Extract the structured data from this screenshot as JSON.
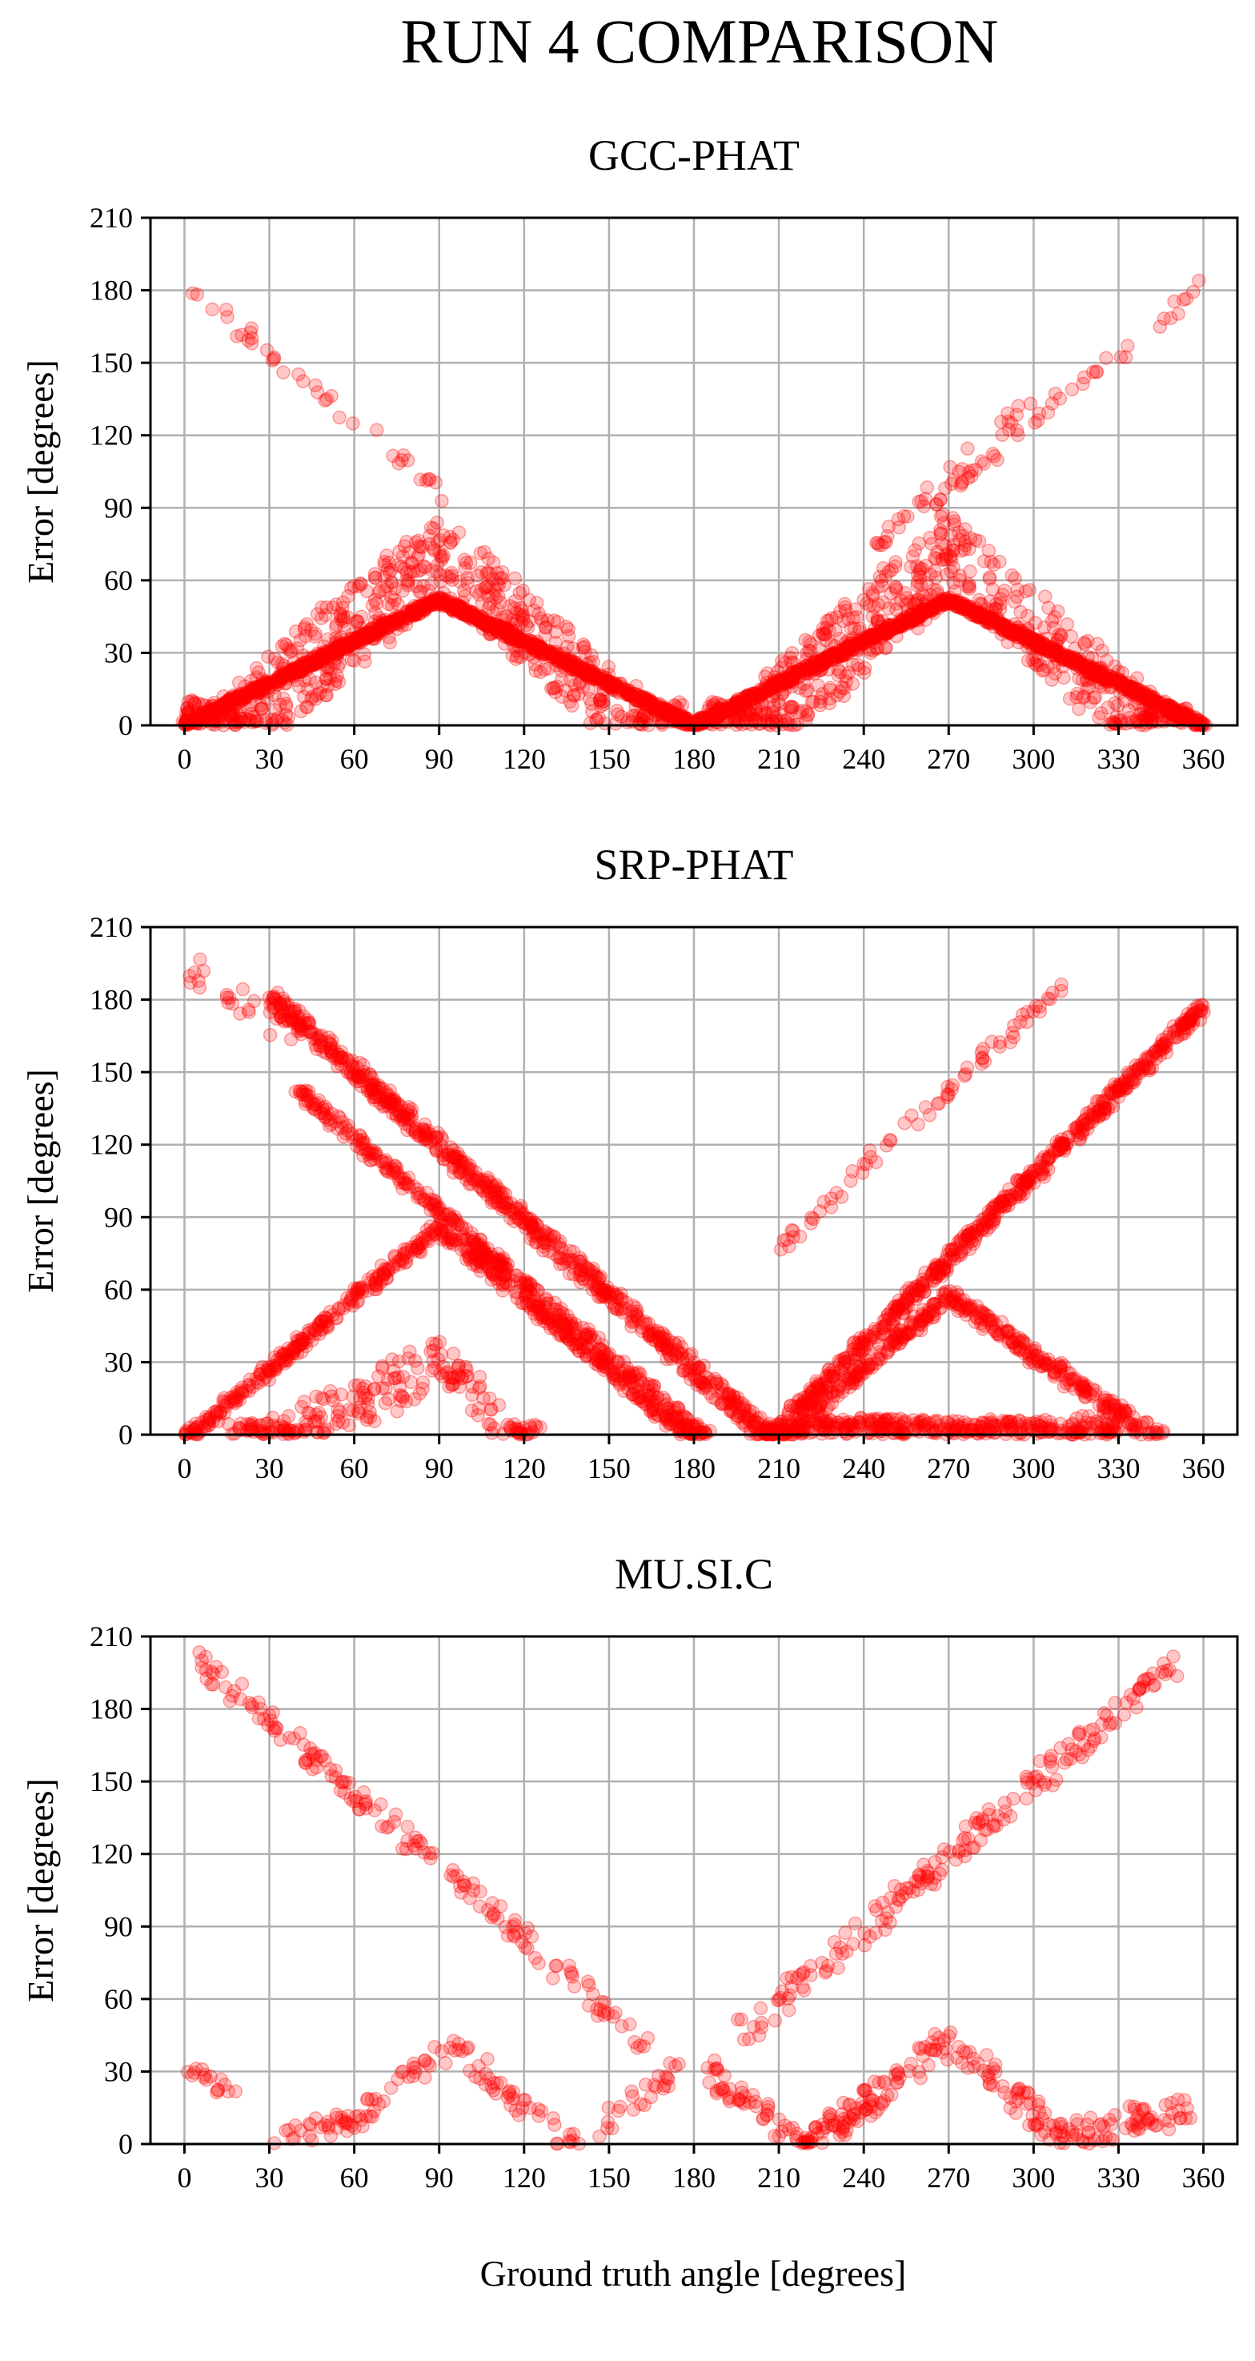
{
  "figure": {
    "suptitle": "RUN 4 COMPARISON",
    "xlabel": "Ground truth angle [degrees]"
  },
  "style": {
    "point_color": "#ff0000",
    "grid_color": "#b0b0b0",
    "point_alpha": 0.22
  },
  "chart_data": [
    {
      "type": "scatter",
      "title": "GCC-PHAT",
      "ylabel": "Error [degrees]",
      "xlim": [
        -12,
        372
      ],
      "ylim": [
        0,
        210
      ],
      "xticks": [
        0,
        30,
        60,
        90,
        120,
        150,
        180,
        210,
        240,
        270,
        300,
        330,
        360
      ],
      "yticks": [
        0,
        30,
        60,
        90,
        120,
        150,
        180,
        210
      ],
      "grid": true,
      "trends": [
        {
          "from": [
            0,
            0
          ],
          "to": [
            90,
            52
          ],
          "band": 0,
          "density": 6
        },
        {
          "from": [
            90,
            52
          ],
          "to": [
            180,
            0
          ],
          "band": 0,
          "density": 6
        },
        {
          "from": [
            180,
            0
          ],
          "to": [
            270,
            52
          ],
          "band": 0,
          "density": 6
        },
        {
          "from": [
            270,
            52
          ],
          "to": [
            360,
            0
          ],
          "band": 0,
          "density": 6
        },
        {
          "from": [
            0,
            0
          ],
          "to": [
            90,
            88
          ],
          "band": 36,
          "density": 4
        },
        {
          "from": [
            90,
            88
          ],
          "to": [
            175,
            0
          ],
          "band": 32,
          "density": 3
        },
        {
          "from": [
            185,
            0
          ],
          "to": [
            270,
            88
          ],
          "band": 36,
          "density": 4
        },
        {
          "from": [
            270,
            88
          ],
          "to": [
            355,
            0
          ],
          "band": 32,
          "density": 3
        },
        {
          "from": [
            0,
            185
          ],
          "to": [
            95,
            95
          ],
          "band": 6,
          "density": 0.4
        },
        {
          "from": [
            265,
            95
          ],
          "to": [
            360,
            185
          ],
          "band": 6,
          "density": 0.5
        },
        {
          "from": [
            240,
            75
          ],
          "to": [
            300,
            140
          ],
          "band": 8,
          "density": 0.5
        }
      ]
    },
    {
      "type": "scatter",
      "title": "SRP-PHAT",
      "ylabel": "Error [degrees]",
      "xlim": [
        -12,
        372
      ],
      "ylim": [
        0,
        210
      ],
      "xticks": [
        0,
        30,
        60,
        90,
        120,
        150,
        180,
        210,
        240,
        270,
        300,
        330,
        360
      ],
      "yticks": [
        0,
        30,
        60,
        90,
        120,
        150,
        180,
        210
      ],
      "grid": true,
      "trends": [
        {
          "from": [
            0,
            0
          ],
          "to": [
            90,
            88
          ],
          "band": 5,
          "density": 3
        },
        {
          "from": [
            90,
            88
          ],
          "to": [
            180,
            0
          ],
          "band": 5,
          "density": 3
        },
        {
          "from": [
            30,
            185
          ],
          "to": [
            210,
            0
          ],
          "band": 8,
          "density": 4
        },
        {
          "from": [
            40,
            145
          ],
          "to": [
            185,
            0
          ],
          "band": 5,
          "density": 2.5
        },
        {
          "from": [
            205,
            0
          ],
          "to": [
            360,
            180
          ],
          "band": 6,
          "density": 4
        },
        {
          "from": [
            210,
            80
          ],
          "to": [
            310,
            190
          ],
          "band": 6,
          "density": 0.7
        },
        {
          "from": [
            210,
            0
          ],
          "to": [
            270,
            60
          ],
          "band": 5,
          "density": 3
        },
        {
          "from": [
            270,
            60
          ],
          "to": [
            345,
            0
          ],
          "band": 6,
          "density": 3
        },
        {
          "from": [
            15,
            0
          ],
          "to": [
            90,
            40
          ],
          "band": 22,
          "density": 2
        },
        {
          "from": [
            90,
            40
          ],
          "to": [
            125,
            0
          ],
          "band": 18,
          "density": 2
        },
        {
          "from": [
            215,
            0
          ],
          "to": [
            330,
            10
          ],
          "band": 25,
          "density": 3
        },
        {
          "from": [
            0,
            200
          ],
          "to": [
            40,
            175
          ],
          "band": 15,
          "density": 0.6
        }
      ]
    },
    {
      "type": "scatter",
      "title": "MU.SI.C",
      "ylabel": "Error [degrees]",
      "xlim": [
        -12,
        372
      ],
      "ylim": [
        0,
        210
      ],
      "xticks": [
        0,
        30,
        60,
        90,
        120,
        150,
        180,
        210,
        240,
        270,
        300,
        330,
        360
      ],
      "yticks": [
        0,
        30,
        60,
        90,
        120,
        150,
        180,
        210
      ],
      "grid": true,
      "trends": [
        {
          "from": [
            5,
            205
          ],
          "to": [
            165,
            45
          ],
          "band": 10,
          "density": 1
        },
        {
          "from": [
            195,
            50
          ],
          "to": [
            350,
            205
          ],
          "band": 12,
          "density": 1.2
        },
        {
          "from": [
            0,
            35
          ],
          "to": [
            20,
            22
          ],
          "band": 6,
          "density": 0.8
        },
        {
          "from": [
            30,
            5
          ],
          "to": [
            60,
            15
          ],
          "band": 8,
          "density": 1
        },
        {
          "from": [
            60,
            15
          ],
          "to": [
            95,
            45
          ],
          "band": 10,
          "density": 1
        },
        {
          "from": [
            95,
            45
          ],
          "to": [
            135,
            5
          ],
          "band": 10,
          "density": 1
        },
        {
          "from": [
            135,
            5
          ],
          "to": [
            175,
            35
          ],
          "band": 12,
          "density": 0.8
        },
        {
          "from": [
            185,
            35
          ],
          "to": [
            220,
            5
          ],
          "band": 10,
          "density": 1.5
        },
        {
          "from": [
            220,
            5
          ],
          "to": [
            270,
            50
          ],
          "band": 14,
          "density": 2
        },
        {
          "from": [
            270,
            50
          ],
          "to": [
            310,
            8
          ],
          "band": 12,
          "density": 1.5
        },
        {
          "from": [
            310,
            8
          ],
          "to": [
            355,
            20
          ],
          "band": 12,
          "density": 1.5
        }
      ]
    }
  ]
}
